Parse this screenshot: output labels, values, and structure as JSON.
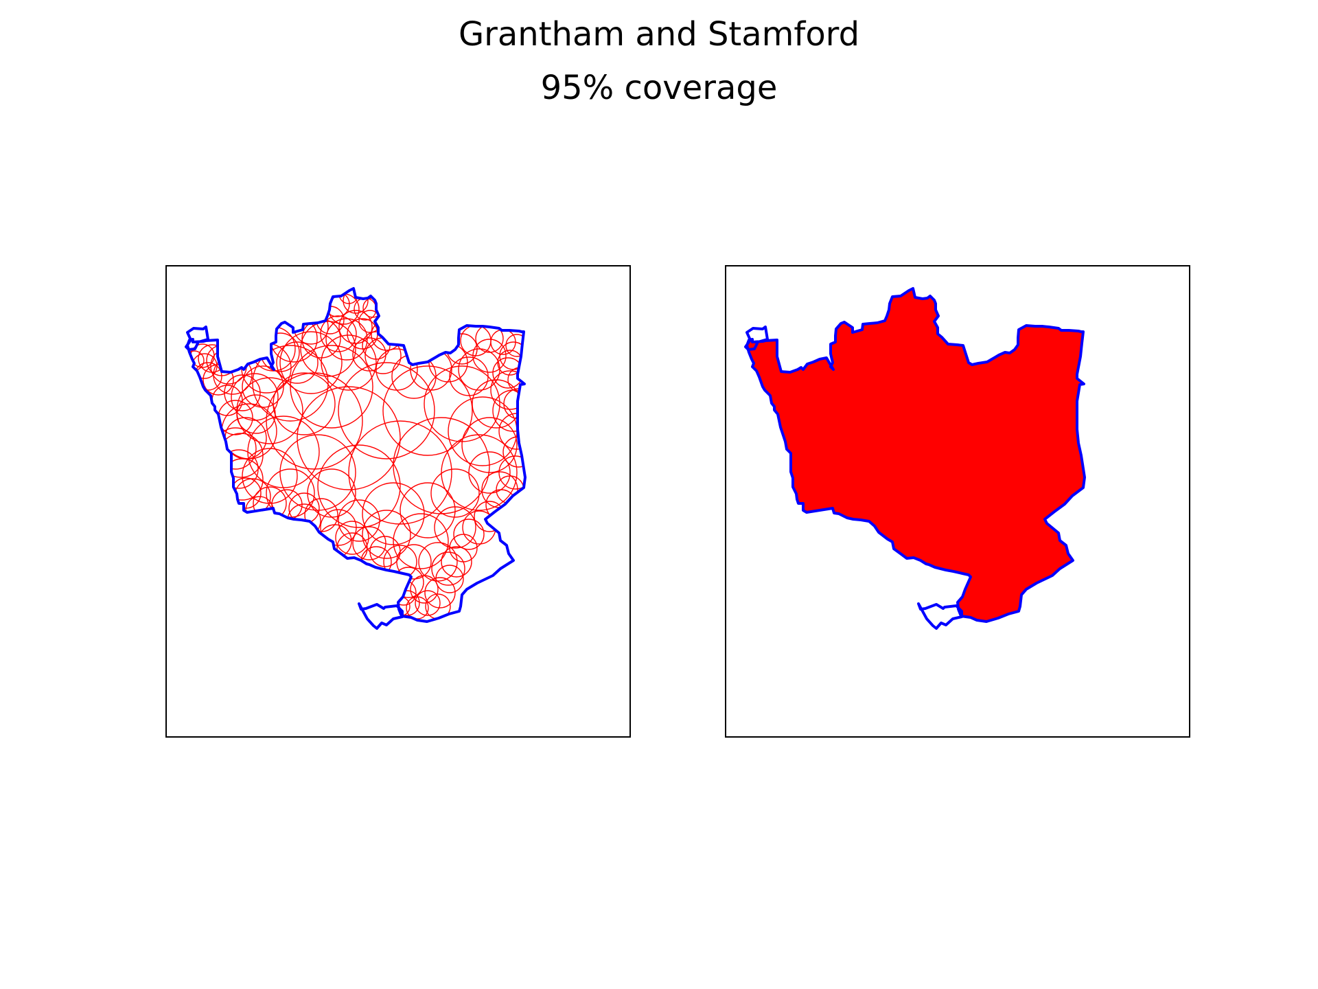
{
  "title": "Grantham and Stamford",
  "subtitle": "95% coverage",
  "colors": {
    "boundary": "#0000ff",
    "coverage": "#ff0000",
    "frame": "#000000",
    "background": "#ffffff"
  },
  "panels": [
    {
      "name": "coverage-circles",
      "style": "circle-outlines"
    },
    {
      "name": "coverage-union",
      "style": "filled"
    }
  ]
}
